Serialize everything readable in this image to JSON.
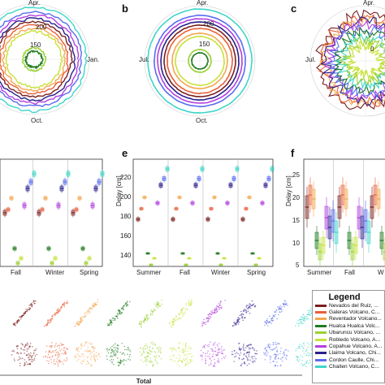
{
  "panels": {
    "b": "b",
    "c": "c",
    "e": "e",
    "f": "f"
  },
  "polar": {
    "month_labels": {
      "apr": "Apr.",
      "jul": "Jul.",
      "jan": "Jan.",
      "oct": "Oct."
    },
    "radial_ticks": [
      "200",
      "150"
    ],
    "c_tick": "0"
  },
  "box_axes": {
    "seasons": [
      "Summer",
      "Fall",
      "Winter",
      "Spring"
    ],
    "e_ylabel": "Delay [cm]",
    "e_yticks": [
      "220",
      "200",
      "180",
      "160",
      "140"
    ],
    "f_ylabel": "Delay [cm]",
    "f_yticks": [
      "25",
      "20",
      "15",
      "10",
      "5"
    ],
    "f_seasons": [
      "Summer",
      "Fall",
      "W"
    ]
  },
  "bottom": {
    "total_label": "Total"
  },
  "legend": {
    "title": "Legend",
    "items": [
      {
        "label": "Nevados del Ruiz, ...",
        "color": "#7b1f1f"
      },
      {
        "label": "Galeras Volcano, C...",
        "color": "#e8603a"
      },
      {
        "label": "Reventador Volcano...",
        "color": "#f4a74e"
      },
      {
        "label": "Hualca Hualca Volc...",
        "color": "#1f7a1f"
      },
      {
        "label": "Ubaruncu Volcano, ...",
        "color": "#9ad134"
      },
      {
        "label": "Robledo Volcano, A...",
        "color": "#c8e23a"
      },
      {
        "label": "Copahue Volcano, A...",
        "color": "#b33fe0"
      },
      {
        "label": "Llaima Volcano, Chi...",
        "color": "#2b1f8c"
      },
      {
        "label": "Cordon Caulle, Chi...",
        "color": "#5a6cf0"
      },
      {
        "label": "Chaiten Volcano, C...",
        "color": "#3fd6c8"
      }
    ]
  },
  "colors": {
    "series": [
      "#7b1f1f",
      "#e8603a",
      "#f4a74e",
      "#1f7a1f",
      "#9ad134",
      "#c8e23a",
      "#b33fe0",
      "#2b1f8c",
      "#5a6cf0",
      "#3fd6c8"
    ]
  }
}
